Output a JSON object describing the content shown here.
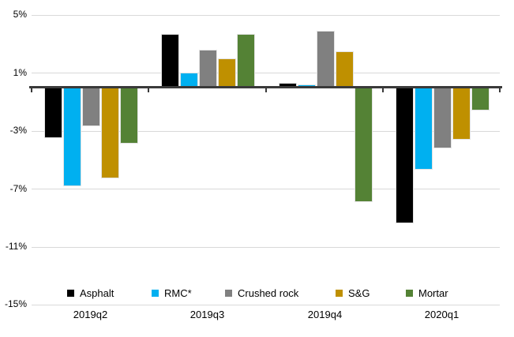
{
  "chart_data": {
    "type": "bar",
    "title": "",
    "unit": "%",
    "categories": [
      "2019q2",
      "2019q3",
      "2019q4",
      "2020q1"
    ],
    "series": [
      {
        "name": "Asphalt",
        "key": "asphalt",
        "color": "#000000",
        "values": [
          -3.5,
          3.7,
          0.3,
          -9.4
        ]
      },
      {
        "name": "RMC*",
        "key": "rmc",
        "color": "#00B0F0",
        "values": [
          -6.8,
          1.0,
          0.2,
          -5.7
        ]
      },
      {
        "name": "Crushed rock",
        "key": "crushed-rock",
        "color": "#808080",
        "values": [
          -2.7,
          2.6,
          3.9,
          -4.2
        ]
      },
      {
        "name": "S&G",
        "key": "sg",
        "color": "#BF9000",
        "values": [
          -6.3,
          2.0,
          2.5,
          -3.6
        ]
      },
      {
        "name": "Mortar",
        "key": "mortar",
        "color": "#548235",
        "values": [
          -3.9,
          3.7,
          -7.9,
          -1.6
        ]
      }
    ],
    "ylim": [
      -15,
      5
    ],
    "yticks": [
      5,
      1,
      -3,
      -7,
      -11,
      -15
    ],
    "ytick_labels": [
      "5%",
      "1%",
      "-3%",
      "-7%",
      "-11%",
      "-15%"
    ],
    "grid": true,
    "legend_position": "bottom",
    "colors": {
      "grid": "#D9D9D9",
      "axis": "#3A3A3A",
      "text": "#000000",
      "background": "#FFFFFF"
    }
  }
}
